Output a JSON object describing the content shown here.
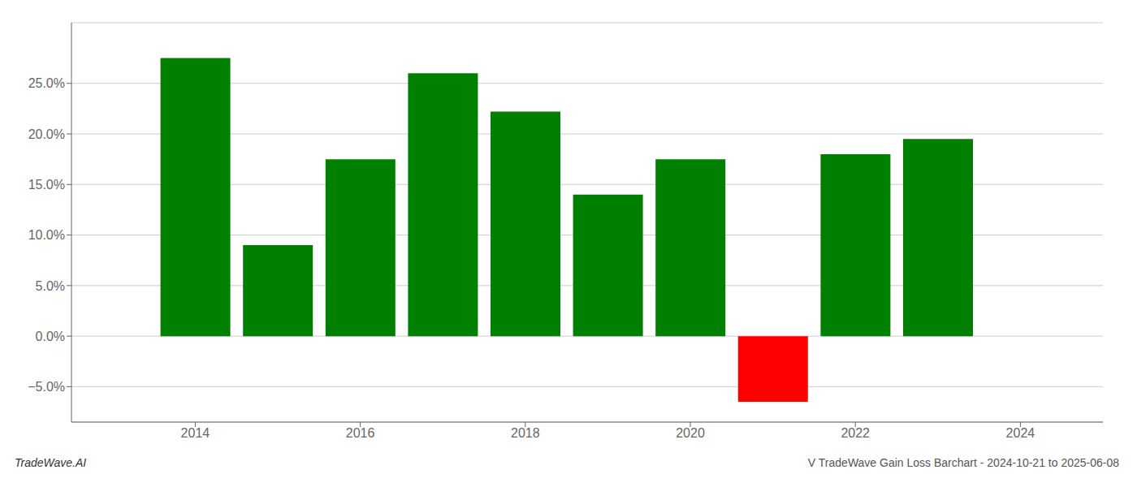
{
  "chart_data": {
    "type": "bar",
    "x": [
      2014,
      2015,
      2016,
      2017,
      2018,
      2019,
      2020,
      2021,
      2022,
      2023
    ],
    "values": [
      0.275,
      0.09,
      0.175,
      0.26,
      0.222,
      0.14,
      0.175,
      -0.065,
      0.18,
      0.195
    ],
    "colors": [
      "#008000",
      "#008000",
      "#008000",
      "#008000",
      "#008000",
      "#008000",
      "#008000",
      "#ff0000",
      "#008000",
      "#008000"
    ],
    "xlim": [
      2012.5,
      2025.0
    ],
    "ylim": [
      -0.085,
      0.31
    ],
    "xticks": [
      2014,
      2016,
      2018,
      2020,
      2022,
      2024
    ],
    "yticks": [
      {
        "value": -0.05,
        "label": "−5.0%"
      },
      {
        "value": 0,
        "label": "0.0%"
      },
      {
        "value": 0.05,
        "label": "5.0%"
      },
      {
        "value": 0.1,
        "label": "10.0%"
      },
      {
        "value": 0.15,
        "label": "15.0%"
      },
      {
        "value": 0.2,
        "label": "20.0%"
      },
      {
        "value": 0.25,
        "label": "25.0%"
      }
    ],
    "grid": true,
    "annotations": [
      "TradeWave.AI",
      "V TradeWave Gain Loss Barchart - 2024-10-21 to 2025-06-08"
    ]
  }
}
